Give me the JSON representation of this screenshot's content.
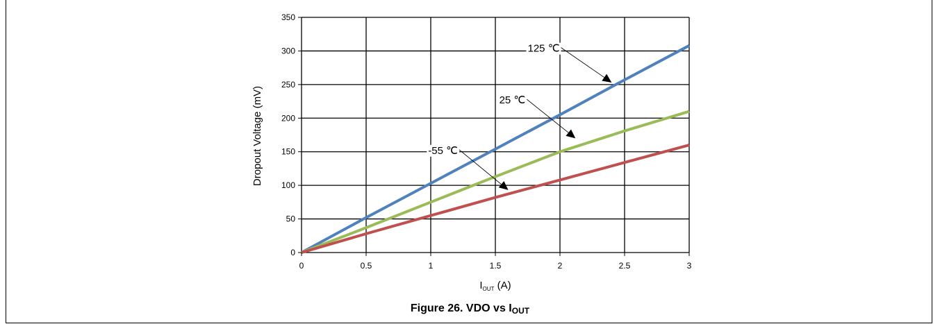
{
  "chart_data": {
    "type": "line",
    "title": "",
    "xlabel_main": "I",
    "xlabel_sub": "OUT",
    "xlabel_suffix": " (A)",
    "ylabel": "Dropout Voltage (mV)",
    "xlim": [
      0,
      3
    ],
    "ylim": [
      0,
      350
    ],
    "x_ticks": [
      "0",
      "0.5",
      "1",
      "1.5",
      "2",
      "2.5",
      "3"
    ],
    "y_ticks": [
      "0",
      "50",
      "100",
      "150",
      "200",
      "250",
      "300",
      "350"
    ],
    "grid": true,
    "series": [
      {
        "name": "125 ℃",
        "color": "#4F81BD",
        "x": [
          0,
          0.5,
          1,
          1.5,
          2,
          2.5,
          3
        ],
        "y": [
          0,
          52,
          103,
          154,
          205,
          257,
          308
        ]
      },
      {
        "name": "25 ℃",
        "color": "#9BBB59",
        "x": [
          0,
          0.5,
          1,
          1.5,
          2,
          2.5,
          3
        ],
        "y": [
          0,
          37,
          75,
          113,
          150,
          181,
          210
        ]
      },
      {
        "name": "-55 ℃",
        "color": "#C0504D",
        "x": [
          0,
          0.5,
          1,
          1.5,
          2,
          2.5,
          3
        ],
        "y": [
          0,
          28,
          55,
          82,
          108,
          134,
          160
        ]
      }
    ],
    "annotations": [
      {
        "label": "125 ℃",
        "series_index": 0,
        "label_at": [
          1.75,
          305
        ],
        "arrow_to": [
          2.4,
          253
        ]
      },
      {
        "label": "25 ℃",
        "series_index": 1,
        "label_at": [
          1.53,
          228
        ],
        "arrow_to": [
          2.12,
          170
        ]
      },
      {
        "label": "-55 ℃",
        "series_index": 2,
        "label_at": [
          0.98,
          153
        ],
        "arrow_to": [
          1.6,
          93
        ]
      }
    ]
  },
  "caption": {
    "prefix": "Figure 26. VDO vs I",
    "sub": "OUT"
  }
}
